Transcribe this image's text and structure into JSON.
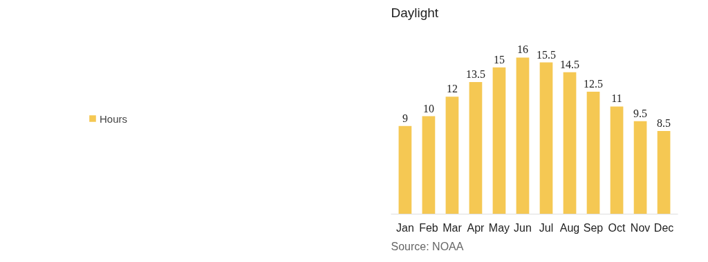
{
  "chart_data": {
    "type": "bar",
    "title": "Daylight",
    "categories": [
      "Jan",
      "Feb",
      "Mar",
      "Apr",
      "May",
      "Jun",
      "Jul",
      "Aug",
      "Sep",
      "Oct",
      "Nov",
      "Dec"
    ],
    "series": [
      {
        "name": "Hours",
        "color": "#f5c853",
        "values": [
          9,
          10,
          12,
          13.5,
          15,
          16,
          15.5,
          14.5,
          12.5,
          11,
          9.5,
          8.5
        ]
      }
    ],
    "data_labels": true,
    "legend": "left",
    "annotations": [
      "Source: NOAA"
    ]
  }
}
